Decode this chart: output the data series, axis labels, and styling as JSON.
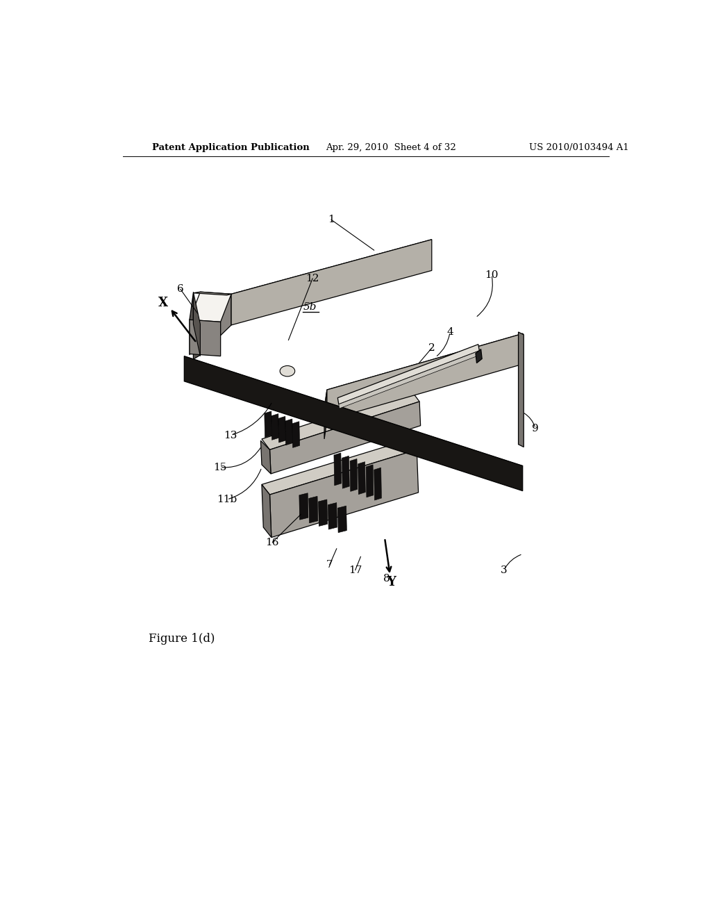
{
  "bg_color": "#ffffff",
  "header_left": "Patent Application Publication",
  "header_center": "Apr. 29, 2010  Sheet 4 of 32",
  "header_right": "US 2010/0103494 A1",
  "figure_label": "Figure 1(d)",
  "colors": {
    "top_light": "#e8e6e0",
    "top_white": "#f4f2ee",
    "side_light": "#c8c4bc",
    "side_mid": "#a8a49c",
    "side_dark": "#787470",
    "end_dark": "#686460",
    "hinge_dark": "#1a1816",
    "comb_dark": "#141210",
    "black": "#000000",
    "mid_block_top": "#d4d0c8",
    "mid_block_side": "#b0aca4"
  }
}
